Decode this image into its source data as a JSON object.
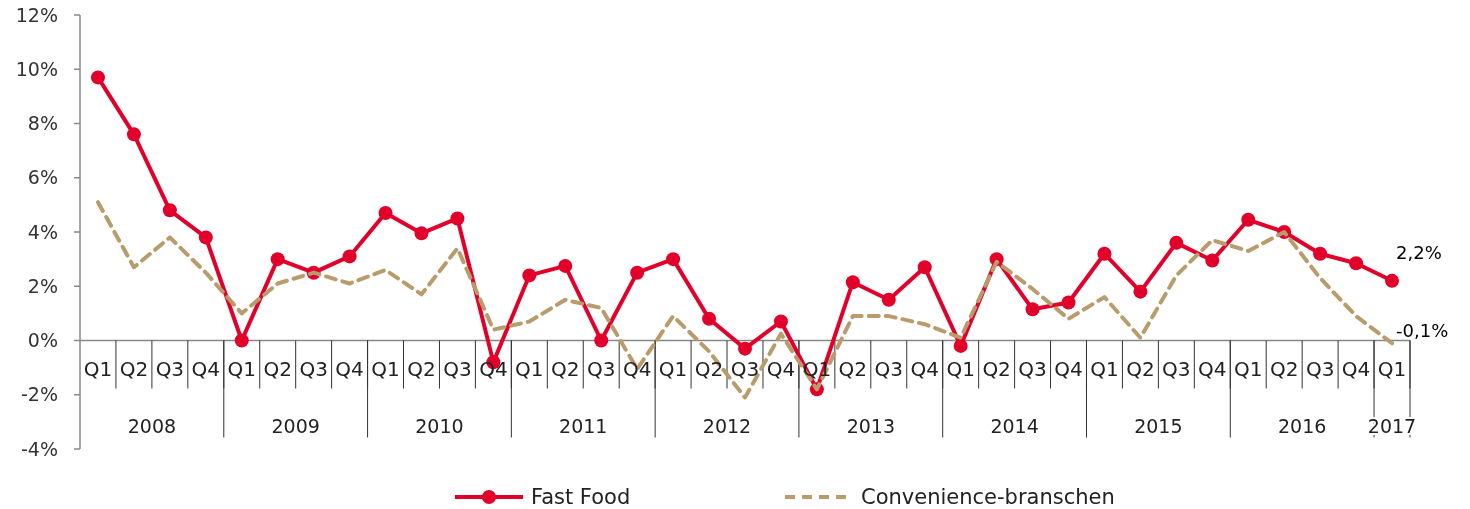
{
  "chart_data": {
    "type": "line",
    "categories": [
      "Q1",
      "Q2",
      "Q3",
      "Q4",
      "Q1",
      "Q2",
      "Q3",
      "Q4",
      "Q1",
      "Q2",
      "Q3",
      "Q4",
      "Q1",
      "Q2",
      "Q3",
      "Q4",
      "Q1",
      "Q2",
      "Q3",
      "Q4",
      "Q1",
      "Q2",
      "Q3",
      "Q4",
      "Q1",
      "Q2",
      "Q3",
      "Q4",
      "Q1",
      "Q2",
      "Q3",
      "Q4",
      "Q1",
      "Q2",
      "Q3",
      "Q4",
      "Q1"
    ],
    "series": [
      {
        "name": "Fast Food",
        "color": "#e2002a",
        "marker": "circle",
        "line_style": "solid",
        "values": [
          9.7,
          7.6,
          4.8,
          3.8,
          0.0,
          3.0,
          2.5,
          3.1,
          4.7,
          3.95,
          4.5,
          -0.8,
          2.4,
          2.75,
          0.0,
          2.5,
          3.0,
          0.8,
          -0.3,
          0.7,
          -1.8,
          2.15,
          1.5,
          2.7,
          -0.2,
          3.0,
          1.15,
          1.4,
          3.2,
          1.8,
          3.6,
          2.95,
          4.45,
          4.0,
          3.2,
          2.85,
          2.2
        ],
        "value_labels": [
          null,
          null,
          null,
          null,
          null,
          null,
          null,
          null,
          null,
          null,
          null,
          null,
          null,
          null,
          null,
          null,
          null,
          null,
          null,
          null,
          null,
          null,
          null,
          null,
          null,
          null,
          null,
          null,
          null,
          null,
          null,
          null,
          null,
          null,
          null,
          null,
          "2,2%"
        ]
      },
      {
        "name": "Convenience-branschen",
        "color": "#b89c6c",
        "marker": "none",
        "line_style": "dashed",
        "values": [
          5.1,
          2.7,
          3.8,
          2.5,
          1.0,
          2.1,
          2.5,
          2.1,
          2.6,
          1.7,
          3.4,
          0.4,
          0.7,
          1.5,
          1.2,
          -1.05,
          0.9,
          -0.4,
          -2.1,
          0.25,
          -1.8,
          0.9,
          0.9,
          0.6,
          0.1,
          2.9,
          1.9,
          0.8,
          1.6,
          0.1,
          2.4,
          3.7,
          3.3,
          4.0,
          2.3,
          0.9,
          -0.1
        ],
        "value_labels": [
          null,
          null,
          null,
          null,
          null,
          null,
          null,
          null,
          null,
          null,
          null,
          null,
          null,
          null,
          null,
          null,
          null,
          null,
          null,
          null,
          null,
          null,
          null,
          null,
          null,
          null,
          null,
          null,
          null,
          null,
          null,
          null,
          null,
          null,
          null,
          null,
          "-0,1%"
        ]
      }
    ],
    "ylim": [
      -4,
      12
    ],
    "yticks": [
      {
        "value": -4,
        "label": "-4%"
      },
      {
        "value": -2,
        "label": "-2%"
      },
      {
        "value": 0,
        "label": "0%"
      },
      {
        "value": 2,
        "label": "2%"
      },
      {
        "value": 4,
        "label": "4%"
      },
      {
        "value": 6,
        "label": "6%"
      },
      {
        "value": 8,
        "label": "8%"
      },
      {
        "value": 10,
        "label": "10%"
      },
      {
        "value": 12,
        "label": "12%"
      }
    ],
    "annotations": [
      "2008",
      "2009",
      "2010",
      "2011",
      "2012",
      "2013",
      "2014",
      "2015",
      "2016",
      "2017"
    ],
    "grid": false,
    "legend": "bottom"
  }
}
